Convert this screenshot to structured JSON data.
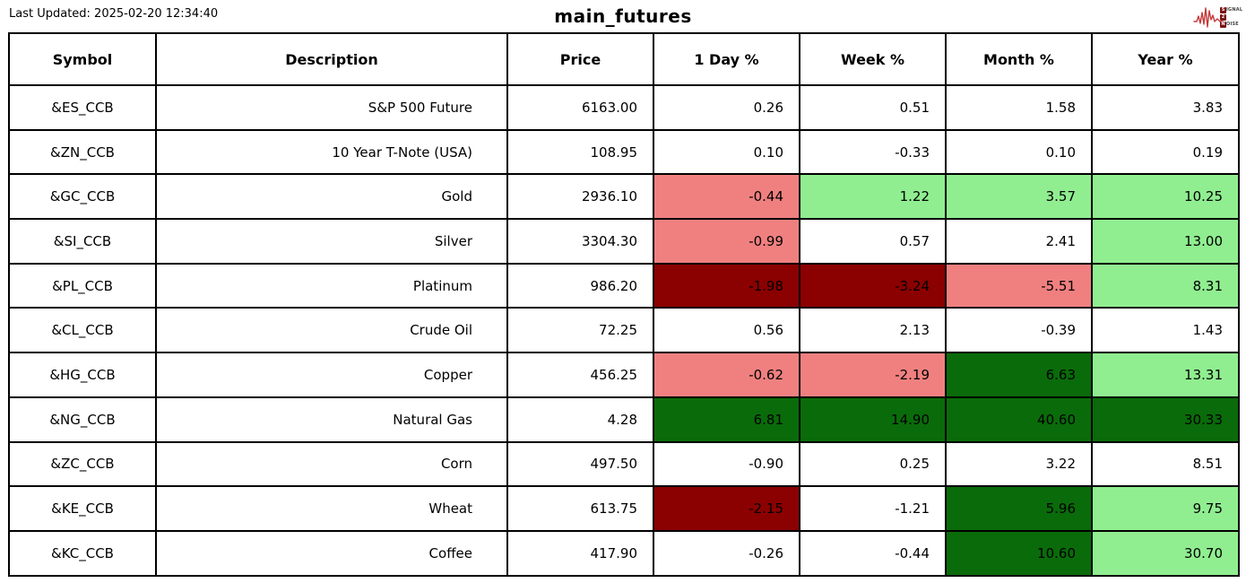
{
  "page": {
    "last_updated": "Last Updated: 2025-02-20 12:34:40",
    "title": "main_futures"
  },
  "logo": {
    "name": "signal-2-noise",
    "line1_badge": "S",
    "line1_rest": "IGNAL",
    "line2_badge": "2",
    "line2_rest": "",
    "line3_badge": "N",
    "line3_rest": "OISE",
    "waveform_color": "#c43a3a",
    "badge_color": "#7b1113"
  },
  "colors": {
    "white": "#FFFFFF",
    "light_red": "#F08080",
    "dark_red": "#8B0000",
    "light_green": "#90EE90",
    "dark_green": "#0A6B0A",
    "border": "#000000"
  },
  "chart_data": {
    "type": "table",
    "title": "main_futures",
    "columns": [
      "Symbol",
      "Description",
      "Price",
      "1 Day %",
      "Week %",
      "Month %",
      "Year %"
    ],
    "rows": [
      {
        "symbol": "&ES_CCB",
        "description": "S&P 500 Future",
        "price": "6163.00",
        "pct": [
          {
            "v": "0.26",
            "bg": "white"
          },
          {
            "v": "0.51",
            "bg": "white"
          },
          {
            "v": "1.58",
            "bg": "white"
          },
          {
            "v": "3.83",
            "bg": "white"
          }
        ]
      },
      {
        "symbol": "&ZN_CCB",
        "description": "10 Year T-Note (USA)",
        "price": "108.95",
        "pct": [
          {
            "v": "0.10",
            "bg": "white"
          },
          {
            "v": "-0.33",
            "bg": "white"
          },
          {
            "v": "0.10",
            "bg": "white"
          },
          {
            "v": "0.19",
            "bg": "white"
          }
        ]
      },
      {
        "symbol": "&GC_CCB",
        "description": "Gold",
        "price": "2936.10",
        "pct": [
          {
            "v": "-0.44",
            "bg": "light_red"
          },
          {
            "v": "1.22",
            "bg": "light_green"
          },
          {
            "v": "3.57",
            "bg": "light_green"
          },
          {
            "v": "10.25",
            "bg": "light_green"
          }
        ]
      },
      {
        "symbol": "&SI_CCB",
        "description": "Silver",
        "price": "3304.30",
        "pct": [
          {
            "v": "-0.99",
            "bg": "light_red"
          },
          {
            "v": "0.57",
            "bg": "white"
          },
          {
            "v": "2.41",
            "bg": "white"
          },
          {
            "v": "13.00",
            "bg": "light_green"
          }
        ]
      },
      {
        "symbol": "&PL_CCB",
        "description": "Platinum",
        "price": "986.20",
        "pct": [
          {
            "v": "-1.98",
            "bg": "dark_red"
          },
          {
            "v": "-3.24",
            "bg": "dark_red"
          },
          {
            "v": "-5.51",
            "bg": "light_red"
          },
          {
            "v": "8.31",
            "bg": "light_green"
          }
        ]
      },
      {
        "symbol": "&CL_CCB",
        "description": "Crude Oil",
        "price": "72.25",
        "pct": [
          {
            "v": "0.56",
            "bg": "white"
          },
          {
            "v": "2.13",
            "bg": "white"
          },
          {
            "v": "-0.39",
            "bg": "white"
          },
          {
            "v": "1.43",
            "bg": "white"
          }
        ]
      },
      {
        "symbol": "&HG_CCB",
        "description": "Copper",
        "price": "456.25",
        "pct": [
          {
            "v": "-0.62",
            "bg": "light_red"
          },
          {
            "v": "-2.19",
            "bg": "light_red"
          },
          {
            "v": "6.63",
            "bg": "dark_green"
          },
          {
            "v": "13.31",
            "bg": "light_green"
          }
        ]
      },
      {
        "symbol": "&NG_CCB",
        "description": "Natural Gas",
        "price": "4.28",
        "pct": [
          {
            "v": "6.81",
            "bg": "dark_green"
          },
          {
            "v": "14.90",
            "bg": "dark_green"
          },
          {
            "v": "40.60",
            "bg": "dark_green"
          },
          {
            "v": "30.33",
            "bg": "dark_green"
          }
        ]
      },
      {
        "symbol": "&ZC_CCB",
        "description": "Corn",
        "price": "497.50",
        "pct": [
          {
            "v": "-0.90",
            "bg": "white"
          },
          {
            "v": "0.25",
            "bg": "white"
          },
          {
            "v": "3.22",
            "bg": "white"
          },
          {
            "v": "8.51",
            "bg": "white"
          }
        ]
      },
      {
        "symbol": "&KE_CCB",
        "description": "Wheat",
        "price": "613.75",
        "pct": [
          {
            "v": "-2.15",
            "bg": "dark_red"
          },
          {
            "v": "-1.21",
            "bg": "white"
          },
          {
            "v": "5.96",
            "bg": "dark_green"
          },
          {
            "v": "9.75",
            "bg": "light_green"
          }
        ]
      },
      {
        "symbol": "&KC_CCB",
        "description": "Coffee",
        "price": "417.90",
        "pct": [
          {
            "v": "-0.26",
            "bg": "white"
          },
          {
            "v": "-0.44",
            "bg": "white"
          },
          {
            "v": "10.60",
            "bg": "dark_green"
          },
          {
            "v": "30.70",
            "bg": "light_green"
          }
        ]
      }
    ]
  }
}
